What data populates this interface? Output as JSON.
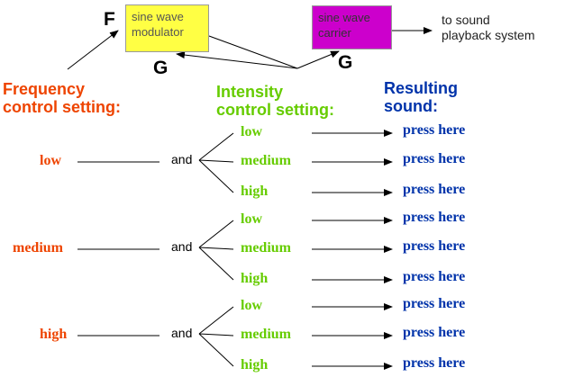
{
  "diagram": {
    "modulator_label": [
      "sine wave",
      "modulator"
    ],
    "carrier_label": [
      "sine wave",
      "carrier"
    ],
    "output_label": [
      "to sound",
      "playback system"
    ],
    "f_label": "F",
    "g_label_modulator": "G",
    "g_label_carrier": "G"
  },
  "headings": {
    "frequency": [
      "Frequency",
      "control setting:"
    ],
    "intensity": [
      "Intensity",
      "control setting:"
    ],
    "result": [
      "Resulting",
      "sound:"
    ]
  },
  "connector_label": "and",
  "rows": [
    {
      "frequency": "low",
      "intensities": [
        "low",
        "medium",
        "high"
      ],
      "links": [
        "press here",
        "press here",
        "press here"
      ]
    },
    {
      "frequency": "medium",
      "intensities": [
        "low",
        "medium",
        "high"
      ],
      "links": [
        "press here",
        "press here",
        "press here"
      ]
    },
    {
      "frequency": "high",
      "intensities": [
        "low",
        "medium",
        "high"
      ],
      "links": [
        "press here",
        "press here",
        "press here"
      ]
    }
  ],
  "colors": {
    "frequency": "#ee4400",
    "intensity": "#66cc00",
    "link": "#0033aa",
    "modulator_box": "#ffff44",
    "carrier_box": "#cc00cc"
  }
}
